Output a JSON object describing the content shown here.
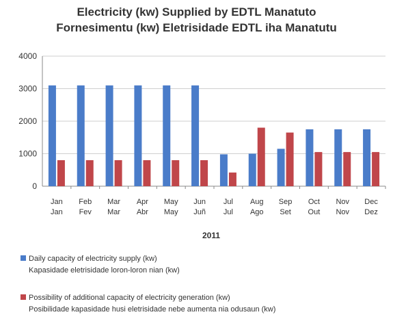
{
  "chart_data": {
    "type": "bar",
    "title": "Electricity (kw) Supplied by EDTL Manatuto",
    "subtitle": "Fornesimentu (kw) Eletrisidade EDTL iha Manatutu",
    "xlabel": "2011",
    "ylabel": "",
    "ylim": [
      0,
      4000
    ],
    "yticks": [
      0,
      1000,
      2000,
      3000,
      4000
    ],
    "grid": true,
    "legend_position": "bottom",
    "categories": [
      [
        "Jan",
        "Jan"
      ],
      [
        "Feb",
        "Fev"
      ],
      [
        "Mar",
        "Mar"
      ],
      [
        "Apr",
        "Abr"
      ],
      [
        "May",
        "May"
      ],
      [
        "Jun",
        "Juñ"
      ],
      [
        "Jul",
        "Jul"
      ],
      [
        "Aug",
        "Ago"
      ],
      [
        "Sep",
        "Set"
      ],
      [
        "Oct",
        "Out"
      ],
      [
        "Nov",
        "Nov"
      ],
      [
        "Dec",
        "Dez"
      ]
    ],
    "series": [
      {
        "name": "Daily capacity of electricity supply (kw)",
        "name_tetum": "Kapasidade eletrisidade loron-loron nian (kw)",
        "color": "#4a7cc9",
        "values": [
          3100,
          3100,
          3100,
          3100,
          3100,
          3100,
          980,
          1000,
          1150,
          1750,
          1750,
          1750
        ]
      },
      {
        "name": "Possibility of additional capacity of electricity generation (kw)",
        "name_tetum": "Posibilidade kapasidade husi eletrisidade nebe aumenta nia odusaun (kw)",
        "color": "#c0464a",
        "values": [
          800,
          800,
          800,
          800,
          800,
          800,
          420,
          1800,
          1650,
          1050,
          1050,
          1050
        ]
      }
    ]
  }
}
